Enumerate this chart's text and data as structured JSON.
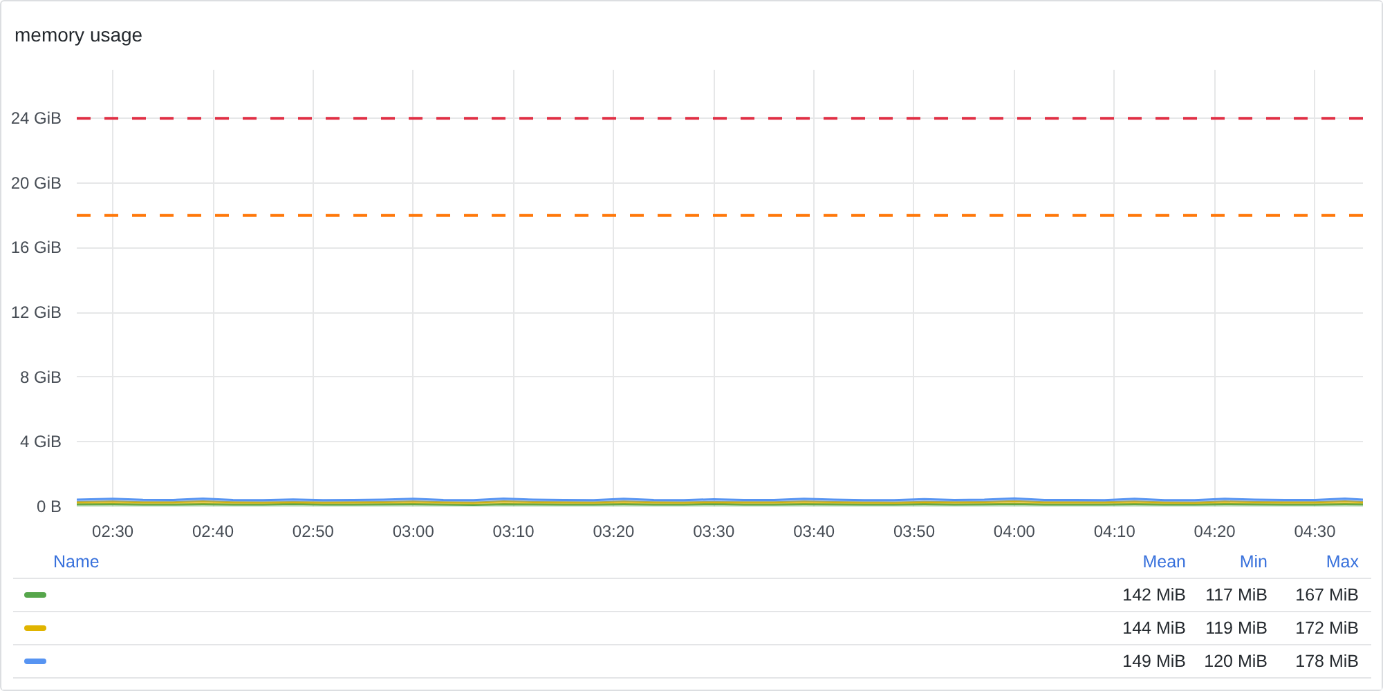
{
  "chart_data": {
    "type": "area",
    "title": "memory usage",
    "stacked": true,
    "x": [
      2.44,
      2.5,
      2.55,
      2.6,
      2.65,
      2.7,
      2.75,
      2.8,
      2.85,
      2.9,
      2.95,
      3,
      3.05,
      3.1,
      3.15,
      3.2,
      3.25,
      3.3,
      3.35,
      3.4,
      3.45,
      3.5,
      3.55,
      3.6,
      3.65,
      3.7,
      3.75,
      3.8,
      3.85,
      3.9,
      3.95,
      4,
      4.05,
      4.1,
      4.15,
      4.2,
      4.25,
      4.3,
      4.35,
      4.4,
      4.45,
      4.5,
      4.55,
      4.58
    ],
    "series": [
      {
        "color": "#56a64b",
        "values": [
          0.14,
          0.15,
          0.13,
          0.13,
          0.15,
          0.13,
          0.13,
          0.16,
          0.13,
          0.13,
          0.14,
          0.15,
          0.13,
          0.11,
          0.15,
          0.14,
          0.13,
          0.13,
          0.15,
          0.13,
          0.13,
          0.16,
          0.13,
          0.13,
          0.15,
          0.14,
          0.13,
          0.13,
          0.15,
          0.13,
          0.14,
          0.16,
          0.13,
          0.13,
          0.13,
          0.15,
          0.13,
          0.13,
          0.15,
          0.14,
          0.13,
          0.13,
          0.15,
          0.14
        ]
      },
      {
        "color": "#e0b400",
        "values": [
          0.14,
          0.16,
          0.14,
          0.14,
          0.17,
          0.14,
          0.13,
          0.12,
          0.13,
          0.14,
          0.14,
          0.16,
          0.14,
          0.14,
          0.17,
          0.14,
          0.14,
          0.13,
          0.16,
          0.14,
          0.13,
          0.12,
          0.14,
          0.14,
          0.16,
          0.14,
          0.13,
          0.12,
          0.14,
          0.14,
          0.14,
          0.17,
          0.14,
          0.14,
          0.14,
          0.16,
          0.13,
          0.12,
          0.16,
          0.14,
          0.14,
          0.14,
          0.17,
          0.14
        ]
      },
      {
        "color": "#5794f2",
        "values": [
          0.15,
          0.17,
          0.15,
          0.14,
          0.17,
          0.14,
          0.14,
          0.16,
          0.14,
          0.14,
          0.15,
          0.17,
          0.14,
          0.14,
          0.17,
          0.15,
          0.14,
          0.14,
          0.17,
          0.14,
          0.14,
          0.17,
          0.14,
          0.14,
          0.17,
          0.15,
          0.14,
          0.14,
          0.17,
          0.14,
          0.15,
          0.17,
          0.14,
          0.14,
          0.12,
          0.17,
          0.14,
          0.14,
          0.17,
          0.15,
          0.14,
          0.14,
          0.17,
          0.15
        ]
      }
    ],
    "xlim": [
      2.44,
      4.58
    ],
    "xticks": [
      {
        "value": 2.5,
        "label": "02:30"
      },
      {
        "value": 2.6667,
        "label": "02:40"
      },
      {
        "value": 2.8333,
        "label": "02:50"
      },
      {
        "value": 3,
        "label": "03:00"
      },
      {
        "value": 3.1667,
        "label": "03:10"
      },
      {
        "value": 3.3333,
        "label": "03:20"
      },
      {
        "value": 3.5,
        "label": "03:30"
      },
      {
        "value": 3.6667,
        "label": "03:40"
      },
      {
        "value": 3.8333,
        "label": "03:50"
      },
      {
        "value": 4,
        "label": "04:00"
      },
      {
        "value": 4.1667,
        "label": "04:10"
      },
      {
        "value": 4.3333,
        "label": "04:20"
      },
      {
        "value": 4.5,
        "label": "04:30"
      }
    ],
    "ylim": [
      0,
      27
    ],
    "yticks": [
      {
        "value": 0,
        "label": "0 B"
      },
      {
        "value": 4,
        "label": "4 GiB"
      },
      {
        "value": 8,
        "label": "8 GiB"
      },
      {
        "value": 12,
        "label": "12 GiB"
      },
      {
        "value": 16,
        "label": "16 GiB"
      },
      {
        "value": 20,
        "label": "20 GiB"
      },
      {
        "value": 24,
        "label": "24 GiB"
      }
    ],
    "ref_lines": [
      {
        "axis": "y",
        "value": 24,
        "color": "#e02f44",
        "line_style": "dashed"
      },
      {
        "axis": "y",
        "value": 18,
        "color": "#ff780a",
        "line_style": "dashed"
      }
    ],
    "grid": true,
    "annotations": [
      "Name",
      "Mean",
      "Min",
      "Max",
      "142 MiB",
      "117 MiB",
      "167 MiB",
      "144 MiB",
      "119 MiB",
      "172 MiB",
      "149 MiB",
      "120 MiB",
      "178 MiB"
    ]
  }
}
